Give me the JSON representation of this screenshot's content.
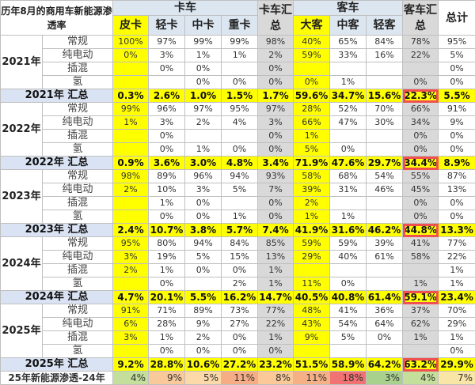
{
  "chart_data": {
    "type": "table",
    "title": "历年8月的商用车新能源渗透率",
    "groups": [
      {
        "label": "卡车",
        "span": 4
      },
      {
        "label": "卡车汇总",
        "span": 1
      },
      {
        "label": "客车",
        "span": 3
      },
      {
        "label": "客车汇总",
        "span": 1
      },
      {
        "label": "总计",
        "span": 1
      }
    ],
    "columns": [
      "皮卡",
      "轻卡",
      "中卡",
      "重卡",
      "卡车汇总",
      "大客",
      "中客",
      "轻客",
      "客车汇总",
      "总计"
    ],
    "years": [
      {
        "year": "2021年",
        "total_label": "2021年 汇总",
        "rows": [
          {
            "type": "常规",
            "values": [
              "100%",
              "97%",
              "99%",
              "99%",
              "98%",
              "40%",
              "65%",
              "84%",
              "78%",
              "95%"
            ]
          },
          {
            "type": "纯电动",
            "values": [
              "0%",
              "3%",
              "1%",
              "1%",
              "2%",
              "59%",
              "33%",
              "16%",
              "22%",
              "5%"
            ]
          },
          {
            "type": "插混",
            "values": [
              "",
              "0%",
              "0%",
              "",
              "0%",
              "",
              "",
              "",
              "",
              "0%"
            ]
          },
          {
            "type": "氢",
            "values": [
              "",
              "",
              "0%",
              "0%",
              "0%",
              "0%",
              "1%",
              "",
              "0%",
              "0%"
            ]
          }
        ],
        "totals": [
          "0.3%",
          "2.6%",
          "1.0%",
          "1.5%",
          "1.7%",
          "59.6%",
          "34.7%",
          "15.6%",
          "22.3%",
          "5.5%"
        ]
      },
      {
        "year": "2022年",
        "total_label": "2022年 汇总",
        "rows": [
          {
            "type": "常规",
            "values": [
              "99%",
              "96%",
              "97%",
              "95%",
              "97%",
              "28%",
              "52%",
              "70%",
              "66%",
              "91%"
            ]
          },
          {
            "type": "纯电动",
            "values": [
              "1%",
              "3%",
              "2%",
              "4%",
              "3%",
              "66%",
              "47%",
              "30%",
              "34%",
              "9%"
            ]
          },
          {
            "type": "插混",
            "values": [
              "",
              "0%",
              "",
              "",
              "0%",
              "1%",
              "",
              "",
              "0%",
              "0%"
            ]
          },
          {
            "type": "氢",
            "values": [
              "",
              "0%",
              "1%",
              "0%",
              "0%",
              "5%",
              "0%",
              "",
              "0%",
              "0%"
            ]
          }
        ],
        "totals": [
          "0.9%",
          "3.6%",
          "3.0%",
          "4.8%",
          "3.4%",
          "71.9%",
          "47.6%",
          "29.7%",
          "34.4%",
          "8.9%"
        ]
      },
      {
        "year": "2023年",
        "total_label": "2023年 汇总",
        "rows": [
          {
            "type": "常规",
            "values": [
              "98%",
              "89%",
              "96%",
              "94%",
              "93%",
              "58%",
              "68%",
              "54%",
              "55%",
              "87%"
            ]
          },
          {
            "type": "纯电动",
            "values": [
              "2%",
              "10%",
              "3%",
              "5%",
              "7%",
              "39%",
              "31%",
              "46%",
              "45%",
              "13%"
            ]
          },
          {
            "type": "插混",
            "values": [
              "",
              "1%",
              "0%",
              "",
              "0%",
              "2%",
              "",
              "",
              "0%",
              "0%"
            ]
          },
          {
            "type": "氢",
            "values": [
              "",
              "0%",
              "0%",
              "1%",
              "0%",
              "1%",
              "1%",
              "",
              "0%",
              "0%"
            ]
          }
        ],
        "totals": [
          "2.4%",
          "10.7%",
          "3.8%",
          "5.7%",
          "7.4%",
          "41.9%",
          "31.6%",
          "46.2%",
          "44.8%",
          "13.3%"
        ]
      },
      {
        "year": "2024年",
        "total_label": "2024年 汇总",
        "rows": [
          {
            "type": "常规",
            "values": [
              "95%",
              "80%",
              "94%",
              "84%",
              "85%",
              "59%",
              "59%",
              "39%",
              "41%",
              "77%"
            ]
          },
          {
            "type": "纯电动",
            "values": [
              "3%",
              "19%",
              "5%",
              "15%",
              "13%",
              "29%",
              "40%",
              "61%",
              "58%",
              "22%"
            ]
          },
          {
            "type": "插混",
            "values": [
              "2%",
              "1%",
              "0%",
              "0%",
              "1%",
              "",
              "",
              "",
              "",
              "1%"
            ]
          },
          {
            "type": "氢",
            "values": [
              "",
              "0%",
              "",
              "2%",
              "1%",
              "11%",
              "0%",
              "",
              "1%",
              "1%"
            ]
          }
        ],
        "totals": [
          "4.7%",
          "20.1%",
          "5.5%",
          "16.2%",
          "14.7%",
          "40.5%",
          "40.8%",
          "61.4%",
          "59.1%",
          "23.4%"
        ]
      },
      {
        "year": "2025年",
        "total_label": "2025年 汇总",
        "rows": [
          {
            "type": "常规",
            "values": [
              "91%",
              "71%",
              "89%",
              "73%",
              "77%",
              "48%",
              "41%",
              "36%",
              "37%",
              "70%"
            ]
          },
          {
            "type": "纯电动",
            "values": [
              "6%",
              "28%",
              "9%",
              "27%",
              "22%",
              "43%",
              "54%",
              "64%",
              "62%",
              "29%"
            ]
          },
          {
            "type": "插混",
            "values": [
              "3%",
              "1%",
              "2%",
              "0%",
              "1%",
              "9%",
              "5%",
              "0%",
              "1%",
              "1%"
            ]
          },
          {
            "type": "氢",
            "values": [
              "",
              "0%",
              "0%",
              "0%",
              "0%",
              "",
              "",
              "",
              "",
              "0%"
            ]
          }
        ],
        "totals": [
          "9.2%",
          "28.8%",
          "10.6%",
          "27.2%",
          "23.2%",
          "51.5%",
          "58.9%",
          "64.2%",
          "63.2%",
          "29.9%"
        ]
      }
    ],
    "diff_row": {
      "label": "25年新能源渗透-24年",
      "values": [
        "4%",
        "9%",
        "5%",
        "11%",
        "8%",
        "11%",
        "18%",
        "3%",
        "4%",
        "7%"
      ],
      "colors": [
        "#c4df9b",
        "#f9c99a",
        "#fbd9a8",
        "#f6ad86",
        "#fac997",
        "#f6b086",
        "#f07272",
        "#a9d18e",
        "#c4df9b",
        "#f9e5a6"
      ]
    },
    "highlighted_column": "客车汇总",
    "colors": {
      "header_blue": "#dce6f1",
      "summary_gray": "#d9d9d9",
      "highlight_yellow": "#ffff00",
      "total_label": "#dae3f3",
      "box_red": "#f05050"
    }
  }
}
